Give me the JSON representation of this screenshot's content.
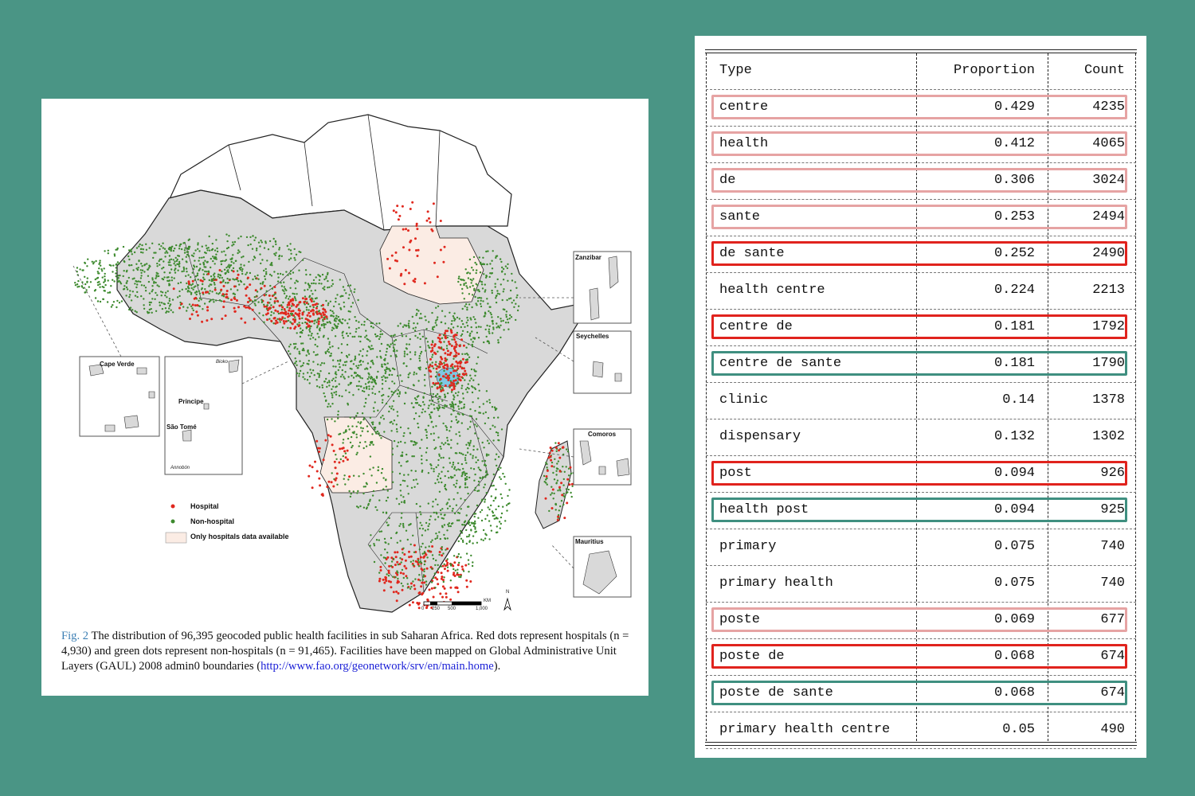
{
  "figure": {
    "inset_labels": {
      "zanzibar": "Zanzibar",
      "seychelles": "Seychelles",
      "comoros": "Comoros",
      "mauritius": "Mauritius",
      "cape_verde": "Cape Verde",
      "principe": "Principe",
      "sao_tome": "São Tomé",
      "bioko": "Bioko",
      "annobon": "Annobón"
    },
    "legend": {
      "hospital": "Hospital",
      "non_hospital": "Non-hospital",
      "only_hospitals": "Only hospitals data available"
    },
    "legend_colors": {
      "hospital": "#e0281e",
      "non_hospital": "#3d8a2e",
      "only_hospitals": "#fbece4"
    },
    "scale_labels": [
      "0",
      "250",
      "500",
      "1,000"
    ],
    "scale_unit": "KM",
    "north_label": "N",
    "caption_label": "Fig. 2",
    "caption_text": "The distribution of 96,395 geocoded public health facilities in sub Saharan Africa. Red dots represent hospitals (n = 4,930) and green dots represent non-hospitals (n = 91,465). Facilities have been mapped on Global Administrative Unit Layers (GAUL) 2008 admin0 boundaries (",
    "caption_link": "http://www.fao.org/geonetwork/srv/en/main.home",
    "caption_end": ")."
  },
  "table": {
    "headers": {
      "type": "Type",
      "proportion": "Proportion",
      "count": "Count"
    },
    "rows": [
      {
        "type": "centre",
        "proportion": "0.429",
        "count": "4235",
        "highlight": "pink"
      },
      {
        "type": "health",
        "proportion": "0.412",
        "count": "4065",
        "highlight": "pink"
      },
      {
        "type": "de",
        "proportion": "0.306",
        "count": "3024",
        "highlight": "pink"
      },
      {
        "type": "sante",
        "proportion": "0.253",
        "count": "2494",
        "highlight": "pink"
      },
      {
        "type": "de sante",
        "proportion": "0.252",
        "count": "2490",
        "highlight": "red"
      },
      {
        "type": "health centre",
        "proportion": "0.224",
        "count": "2213",
        "highlight": ""
      },
      {
        "type": "centre de",
        "proportion": "0.181",
        "count": "1792",
        "highlight": "red"
      },
      {
        "type": "centre de sante",
        "proportion": "0.181",
        "count": "1790",
        "highlight": "teal"
      },
      {
        "type": "clinic",
        "proportion": "0.14",
        "count": "1378",
        "highlight": ""
      },
      {
        "type": "dispensary",
        "proportion": "0.132",
        "count": "1302",
        "highlight": ""
      },
      {
        "type": "post",
        "proportion": "0.094",
        "count": "926",
        "highlight": "red"
      },
      {
        "type": "health post",
        "proportion": "0.094",
        "count": "925",
        "highlight": "teal"
      },
      {
        "type": "primary",
        "proportion": "0.075",
        "count": "740",
        "highlight": ""
      },
      {
        "type": "primary health",
        "proportion": "0.075",
        "count": "740",
        "highlight": ""
      },
      {
        "type": "poste",
        "proportion": "0.069",
        "count": "677",
        "highlight": "pink"
      },
      {
        "type": "poste de",
        "proportion": "0.068",
        "count": "674",
        "highlight": "red"
      },
      {
        "type": "poste de sante",
        "proportion": "0.068",
        "count": "674",
        "highlight": "teal"
      },
      {
        "type": "primary health centre",
        "proportion": "0.05",
        "count": "490",
        "highlight": ""
      }
    ]
  }
}
